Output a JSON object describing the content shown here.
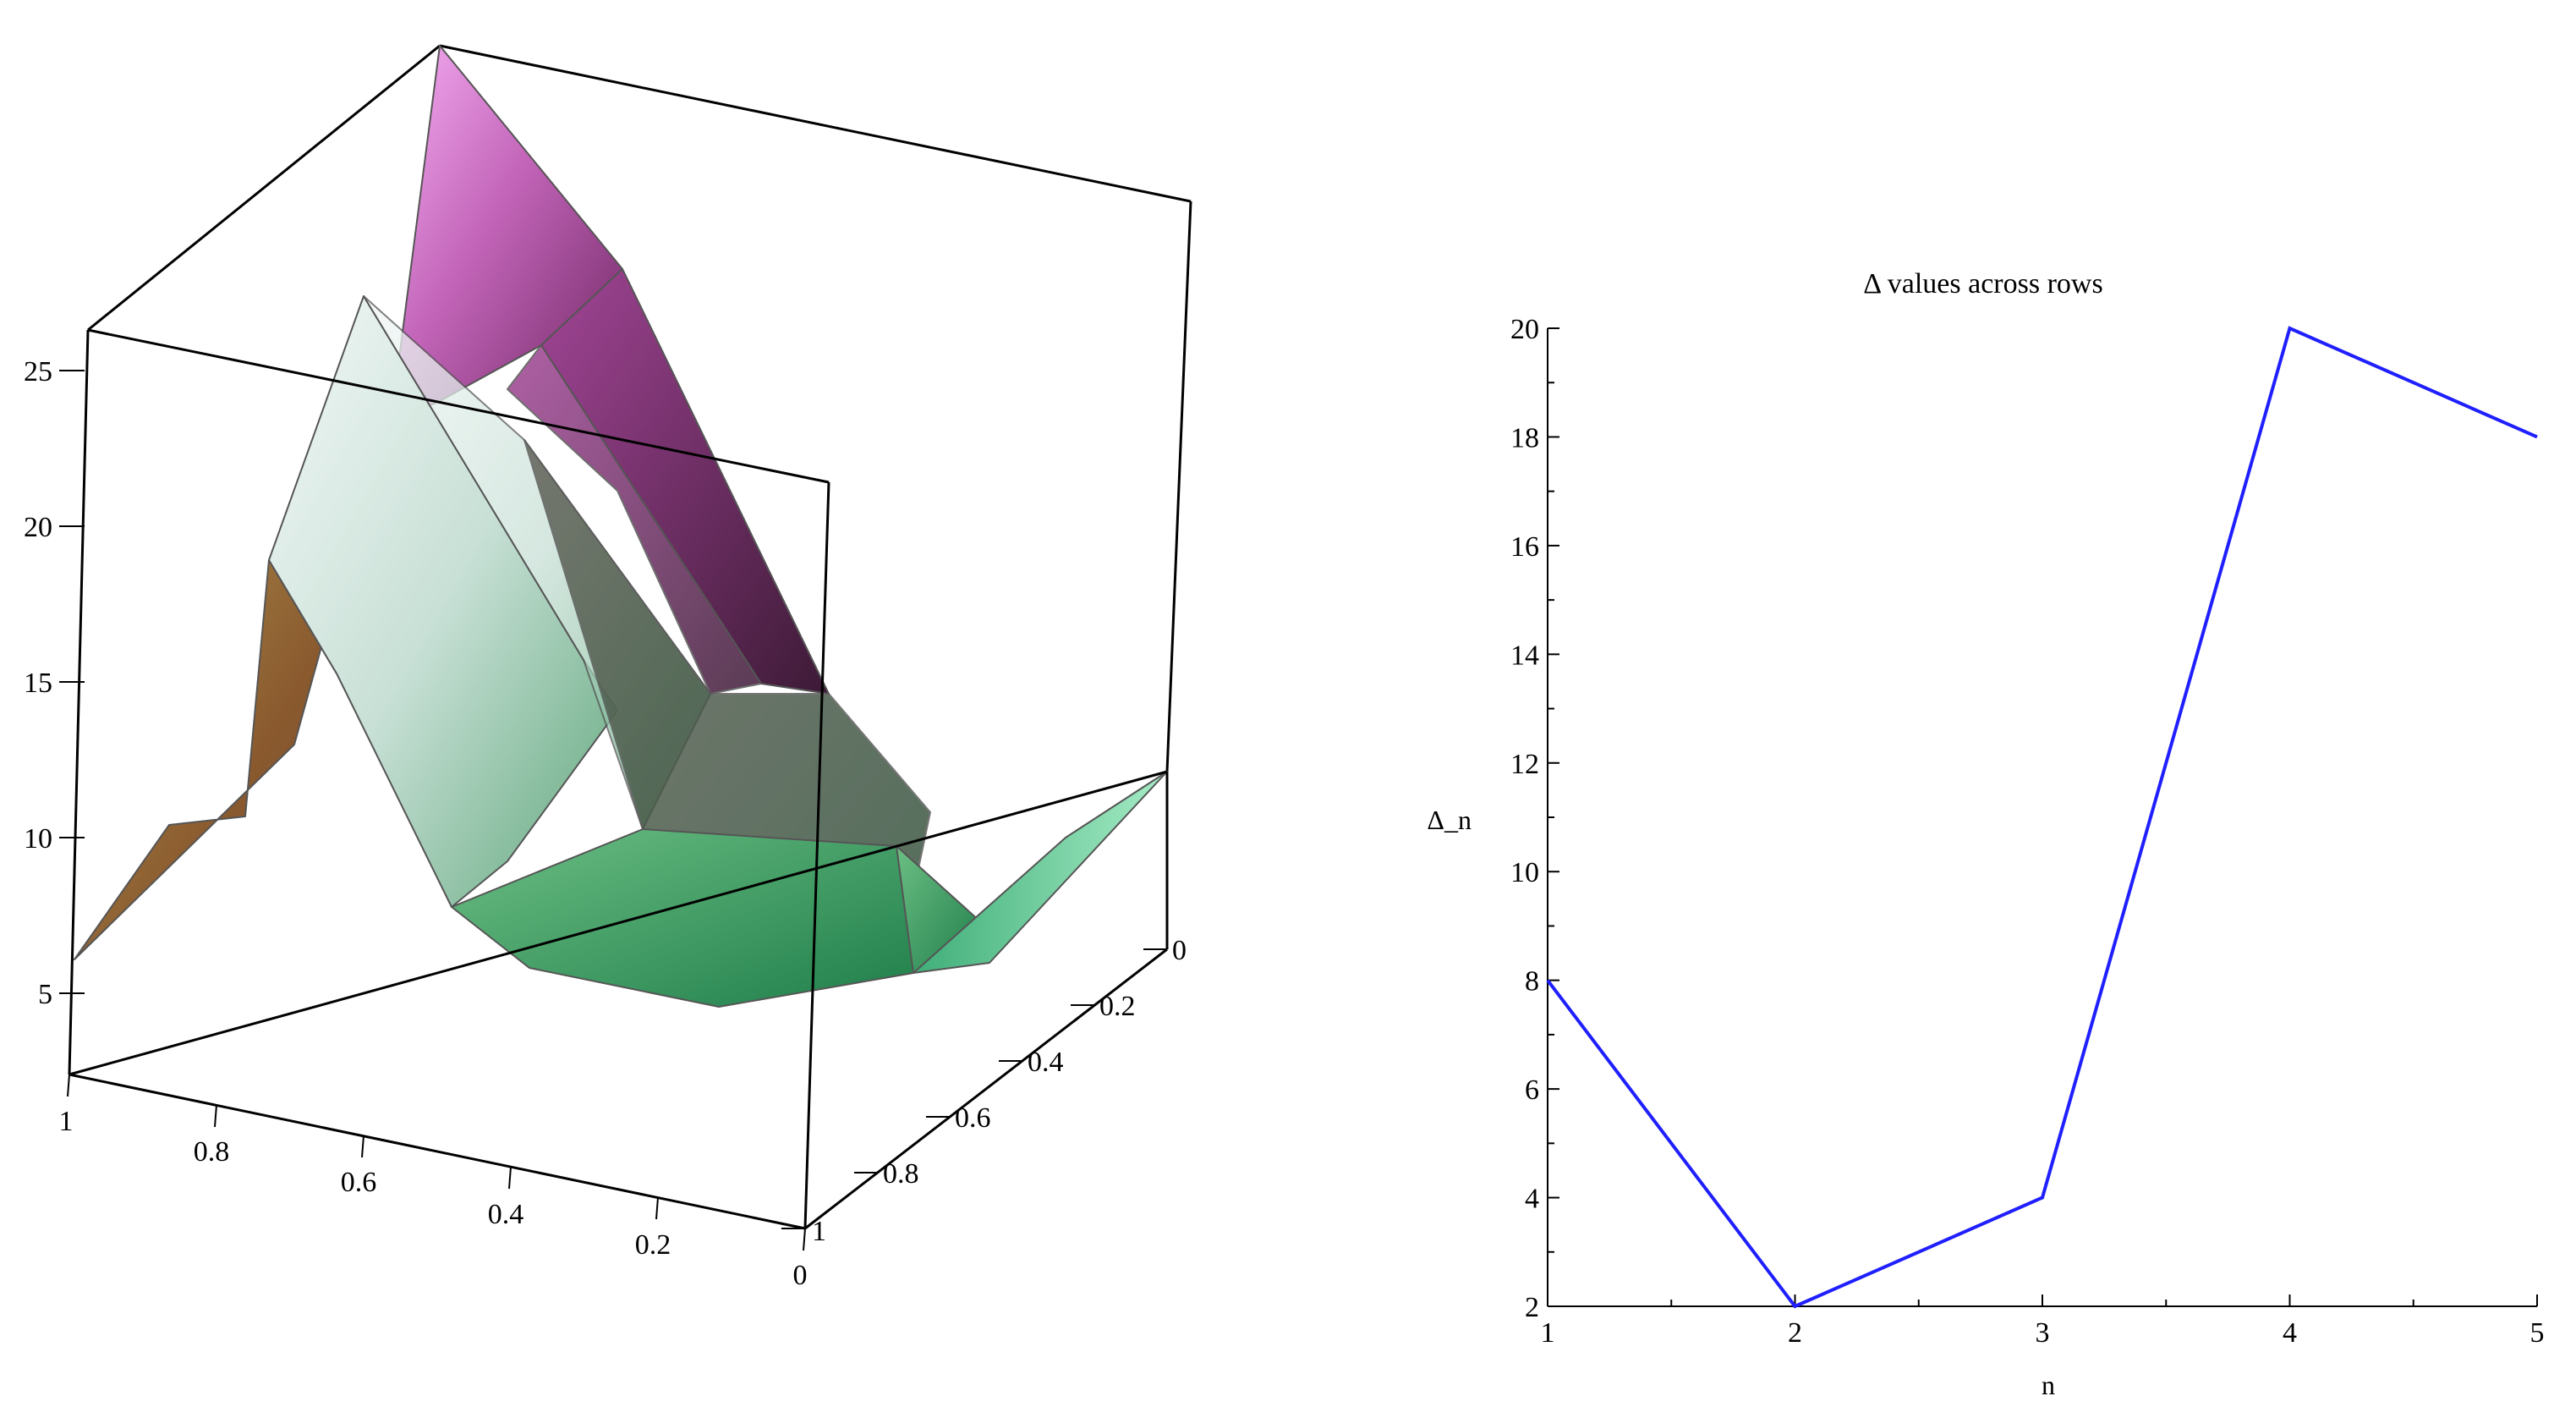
{
  "chart_data": [
    {
      "type": "surface3d",
      "title": "",
      "xlabel": "",
      "ylabel": "",
      "zlabel": "",
      "x_ticks": [
        "1",
        "0.8",
        "0.6",
        "0.4",
        "0.2",
        "0"
      ],
      "y_ticks": [
        "0",
        "0.2",
        "0.4",
        "0.6",
        "0.8",
        "1"
      ],
      "z_ticks": [
        "5",
        "10",
        "15",
        "20",
        "25"
      ],
      "x_range": [
        0,
        1
      ],
      "y_range": [
        0,
        1
      ],
      "z_range": [
        2,
        26
      ],
      "colors": {
        "high": "#f29ff0",
        "mid": "#8e3a84",
        "light": "#eef5f3",
        "low": "#2f9a5e",
        "edge_low": "#7ed6a6",
        "warm": "#8a5a2e",
        "mesh": "#555555"
      }
    },
    {
      "type": "line",
      "title": "Δ values across rows",
      "xlabel": "n",
      "ylabel": "Δ_n",
      "x": [
        1,
        2,
        3,
        4,
        5
      ],
      "series": [
        {
          "values": [
            8,
            2,
            4,
            20,
            18
          ],
          "color": "#1f1fff"
        }
      ],
      "xlim": [
        1,
        5
      ],
      "ylim": [
        2,
        20
      ],
      "x_ticks": [
        1,
        2,
        3,
        4,
        5
      ],
      "y_ticks": [
        2,
        4,
        6,
        8,
        10,
        12,
        14,
        16,
        18,
        20
      ],
      "grid": false,
      "legend": "none"
    }
  ]
}
